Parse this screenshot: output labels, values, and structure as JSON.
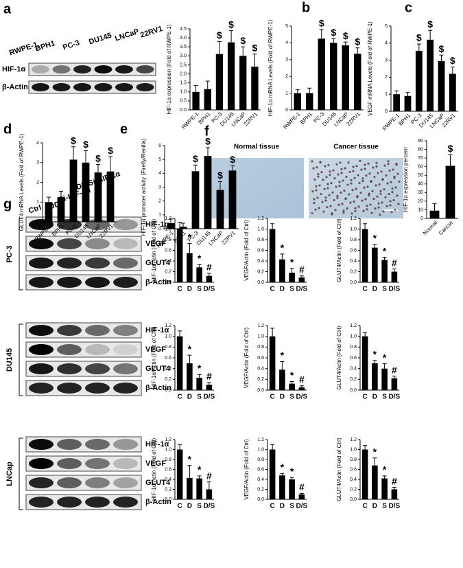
{
  "panel_labels": [
    "a",
    "b",
    "c",
    "d",
    "e",
    "f",
    "g"
  ],
  "blot_a": {
    "lanes": [
      "RWPE-1",
      "BPH1",
      "PC-3",
      "DU145",
      "LNCaP",
      "22RV1"
    ],
    "bands": [
      "HIF-1α",
      "β-Actin"
    ]
  },
  "tissue": {
    "labels": [
      "Normal tissue",
      "Cancer tissue"
    ]
  },
  "blot_g": {
    "lanes": [
      "Ctrl",
      "DDP",
      "Si-HIF-1α",
      "DDP/Si-HIF-1α"
    ],
    "cell_lines": [
      "PC-3",
      "DU145",
      "LNCap"
    ],
    "bands": [
      "HIF-1α",
      "VEGF",
      "GLUT4",
      "β-Actin"
    ]
  },
  "chart_data": [
    {
      "type": "bar",
      "y_label": "HIF-1α expression (Fold of RWPE-1)",
      "categories": [
        "RWPE-1",
        "BPH1",
        "PC-3",
        "DU145",
        "LNCaP",
        "22RV1"
      ],
      "values": [
        1.0,
        1.15,
        3.1,
        3.75,
        3.0,
        2.4
      ],
      "errors": [
        0.35,
        0.45,
        0.7,
        0.65,
        0.5,
        0.7
      ],
      "markers": [
        null,
        null,
        "$",
        "$",
        "$",
        "$"
      ],
      "ylim": [
        0,
        4.5
      ],
      "yticks": [
        {
          "value": 0,
          "label": "0.0"
        },
        0.5,
        {
          "value": 1,
          "label": "1.0"
        },
        1.5,
        {
          "value": 2,
          "label": "2.0"
        },
        2.5,
        {
          "value": 3,
          "label": "3.0"
        },
        3.5,
        {
          "value": 4,
          "label": "4.0"
        },
        4.5
      ],
      "color": "#000000"
    },
    {
      "type": "bar",
      "y_label": "HIF-1α mRNA Levels (Fold of RWPE-1)",
      "categories": [
        "RWPE-1",
        "BPH1",
        "PC-3",
        "DU145",
        "LNCaP",
        "22RV1"
      ],
      "values": [
        1.0,
        1.0,
        4.25,
        4.0,
        3.85,
        3.35
      ],
      "errors": [
        0.2,
        0.3,
        0.55,
        0.25,
        0.2,
        0.35
      ],
      "markers": [
        null,
        null,
        "$",
        "$",
        "$",
        "$"
      ],
      "ylim": [
        0,
        5
      ],
      "yticks": [
        0,
        1,
        2,
        3,
        4,
        5
      ],
      "color": "#000000"
    },
    {
      "type": "bar",
      "y_label": "VEGF mRNA Levels (Fold of RWPE-1)",
      "categories": [
        "RWPE-1",
        "BPH1",
        "PC-3",
        "DU145",
        "LNCaP",
        "22RV1"
      ],
      "values": [
        1.0,
        0.9,
        3.55,
        4.2,
        2.95,
        2.2
      ],
      "errors": [
        0.2,
        0.2,
        0.4,
        0.55,
        0.35,
        0.4
      ],
      "markers": [
        null,
        null,
        "$",
        "$",
        "$",
        "$"
      ],
      "ylim": [
        0,
        5
      ],
      "yticks": [
        0,
        1,
        2,
        3,
        4,
        5
      ],
      "color": "#000000"
    },
    {
      "type": "bar",
      "y_label": "GLUT4 mRNA Levels (Fold of RWPE-1)",
      "categories": [
        "RWPE-1",
        "BPH1",
        "PC-3",
        "DU145",
        "LNCaP",
        "22RV1"
      ],
      "values": [
        1.0,
        1.25,
        3.15,
        3.0,
        2.5,
        2.55
      ],
      "errors": [
        0.25,
        0.3,
        0.65,
        0.6,
        0.4,
        0.75
      ],
      "markers": [
        null,
        null,
        "$",
        "$",
        "$",
        "$"
      ],
      "ylim": [
        0,
        4
      ],
      "yticks": [
        0,
        1,
        2,
        3,
        4
      ],
      "color": "#000000"
    },
    {
      "type": "bar",
      "y_label": "HIF-1α promoter activity (Firefly/Renilla)",
      "categories": [
        "RWPE-1",
        "BPH1",
        "PC-3",
        "DU145",
        "LNCaP",
        "22RV1"
      ],
      "values": [
        0.4,
        0.15,
        4.15,
        5.25,
        2.8,
        4.2
      ],
      "errors": [
        0.3,
        0.25,
        0.45,
        0.6,
        0.6,
        0.35
      ],
      "markers": [
        null,
        null,
        "$",
        "$",
        "$",
        "$"
      ],
      "ylim": [
        0,
        6
      ],
      "yticks": [
        0,
        1,
        2,
        3,
        4,
        5,
        6
      ],
      "color": "#000000"
    },
    {
      "type": "bar",
      "y_label": "HIF-1α expression percent",
      "categories": [
        "Normal",
        "Cancer"
      ],
      "values": [
        9,
        61
      ],
      "errors": [
        8,
        13
      ],
      "markers": [
        null,
        "$"
      ],
      "ylim": [
        0,
        90
      ],
      "yticks": [
        0,
        10,
        20,
        30,
        40,
        50,
        60,
        70,
        80,
        90
      ],
      "color": "#000000"
    },
    {
      "type": "bar",
      "y_label": "HIF-1α/Actin (Fold of Ctrl)",
      "categories": [
        "C",
        "D",
        "S",
        "D/S"
      ],
      "values": [
        1.0,
        0.55,
        0.28,
        0.12
      ],
      "errors": [
        0.13,
        0.18,
        0.05,
        0.05
      ],
      "markers": [
        null,
        "*",
        "*",
        "#"
      ],
      "ylim": [
        0,
        1.2
      ],
      "yticks": [
        {
          "value": 0,
          "label": "0.0"
        },
        0.2,
        0.4,
        0.6,
        0.8,
        {
          "value": 1,
          "label": "1.0"
        },
        1.2
      ],
      "color": "#000000"
    },
    {
      "type": "bar",
      "y_label": "VEGF/Actin (Fold of Ctrl)",
      "categories": [
        "C",
        "D",
        "S",
        "D/S"
      ],
      "values": [
        1.0,
        0.43,
        0.18,
        0.09
      ],
      "errors": [
        0.1,
        0.1,
        0.08,
        0.03
      ],
      "markers": [
        null,
        "*",
        "*",
        "#"
      ],
      "ylim": [
        0,
        1.2
      ],
      "yticks": [
        {
          "value": 0,
          "label": "0.0"
        },
        0.2,
        0.4,
        0.6,
        0.8,
        {
          "value": 1,
          "label": "1.0"
        },
        1.2
      ],
      "color": "#000000"
    },
    {
      "type": "bar",
      "y_label": "GLUT4/Actin (Fold of Ctrl)",
      "categories": [
        "C",
        "D",
        "S",
        "D/S"
      ],
      "values": [
        1.0,
        0.65,
        0.42,
        0.2
      ],
      "errors": [
        0.1,
        0.06,
        0.05,
        0.05
      ],
      "markers": [
        null,
        "*",
        "*",
        "#"
      ],
      "ylim": [
        0,
        1.2
      ],
      "yticks": [
        {
          "value": 0,
          "label": "0.0"
        },
        0.2,
        0.4,
        0.6,
        0.8,
        {
          "value": 1,
          "label": "1.0"
        },
        1.2
      ],
      "color": "#000000"
    },
    {
      "type": "bar",
      "y_label": "HIF-1α/Actin (Fold of Ctrl)",
      "categories": [
        "C",
        "D",
        "S",
        "D/S"
      ],
      "values": [
        1.0,
        0.5,
        0.23,
        0.1
      ],
      "errors": [
        0.1,
        0.15,
        0.06,
        0.04
      ],
      "markers": [
        null,
        "*",
        "*",
        "#"
      ],
      "ylim": [
        0,
        1.2
      ],
      "yticks": [
        {
          "value": 0,
          "label": "0.0"
        },
        0.2,
        0.4,
        0.6,
        0.8,
        {
          "value": 1,
          "label": "1.0"
        },
        1.2
      ],
      "color": "#000000"
    },
    {
      "type": "bar",
      "y_label": "VEGF/Actin (Fold of Ctrl)",
      "categories": [
        "C",
        "D",
        "S",
        "D/S"
      ],
      "values": [
        1.0,
        0.38,
        0.12,
        0.05
      ],
      "errors": [
        0.15,
        0.15,
        0.04,
        0.03
      ],
      "markers": [
        null,
        "*",
        "*",
        "#"
      ],
      "ylim": [
        0,
        1.2
      ],
      "yticks": [
        {
          "value": 0,
          "label": "0.0"
        },
        0.2,
        0.4,
        0.6,
        0.8,
        {
          "value": 1,
          "label": "1.0"
        },
        1.2
      ],
      "color": "#000000"
    },
    {
      "type": "bar",
      "y_label": "GLUT4/Actin (Fold of Ctrl)",
      "categories": [
        "C",
        "D",
        "S",
        "D/S"
      ],
      "values": [
        1.0,
        0.5,
        0.4,
        0.22
      ],
      "errors": [
        0.07,
        0.05,
        0.09,
        0.04
      ],
      "markers": [
        null,
        "*",
        "*",
        "#"
      ],
      "ylim": [
        0,
        1.2
      ],
      "yticks": [
        {
          "value": 0,
          "label": "0.0"
        },
        0.2,
        0.4,
        0.6,
        0.8,
        {
          "value": 1,
          "label": "1.0"
        },
        1.2
      ],
      "color": "#000000"
    },
    {
      "type": "bar",
      "y_label": "HIF-1α/Actin (Fold of Ctrl)",
      "categories": [
        "C",
        "D",
        "S",
        "D/S"
      ],
      "values": [
        1.0,
        0.43,
        0.42,
        0.2
      ],
      "errors": [
        0.1,
        0.25,
        0.05,
        0.15
      ],
      "markers": [
        null,
        "*",
        "*",
        "#"
      ],
      "ylim": [
        0,
        1.2
      ],
      "yticks": [
        {
          "value": 0,
          "label": "0.0"
        },
        0.2,
        0.4,
        0.6,
        0.8,
        {
          "value": 1,
          "label": "1.0"
        },
        1.2
      ],
      "color": "#000000"
    },
    {
      "type": "bar",
      "y_label": "VEGF/Actin (Fold of Ctrl)",
      "categories": [
        "C",
        "D",
        "S",
        "D/S"
      ],
      "values": [
        1.0,
        0.48,
        0.4,
        0.1
      ],
      "errors": [
        0.1,
        0.04,
        0.04,
        0.02
      ],
      "markers": [
        null,
        "*",
        "*",
        "#"
      ],
      "ylim": [
        0,
        1.2
      ],
      "yticks": [
        {
          "value": 0,
          "label": "0.0"
        },
        0.2,
        0.4,
        0.6,
        0.8,
        {
          "value": 1,
          "label": "1.0"
        },
        1.2
      ],
      "color": "#000000"
    },
    {
      "type": "bar",
      "y_label": "GLUT4/Actin (Fold of Ctrl)",
      "categories": [
        "C",
        "D",
        "S",
        "D/S"
      ],
      "values": [
        1.0,
        0.68,
        0.42,
        0.2
      ],
      "errors": [
        0.08,
        0.15,
        0.05,
        0.04
      ],
      "markers": [
        null,
        "*",
        "*",
        "#"
      ],
      "ylim": [
        0,
        1.2
      ],
      "yticks": [
        {
          "value": 0,
          "label": "0.0"
        },
        0.2,
        0.4,
        0.6,
        0.8,
        {
          "value": 1,
          "label": "1.0"
        },
        1.2
      ],
      "color": "#000000"
    }
  ]
}
